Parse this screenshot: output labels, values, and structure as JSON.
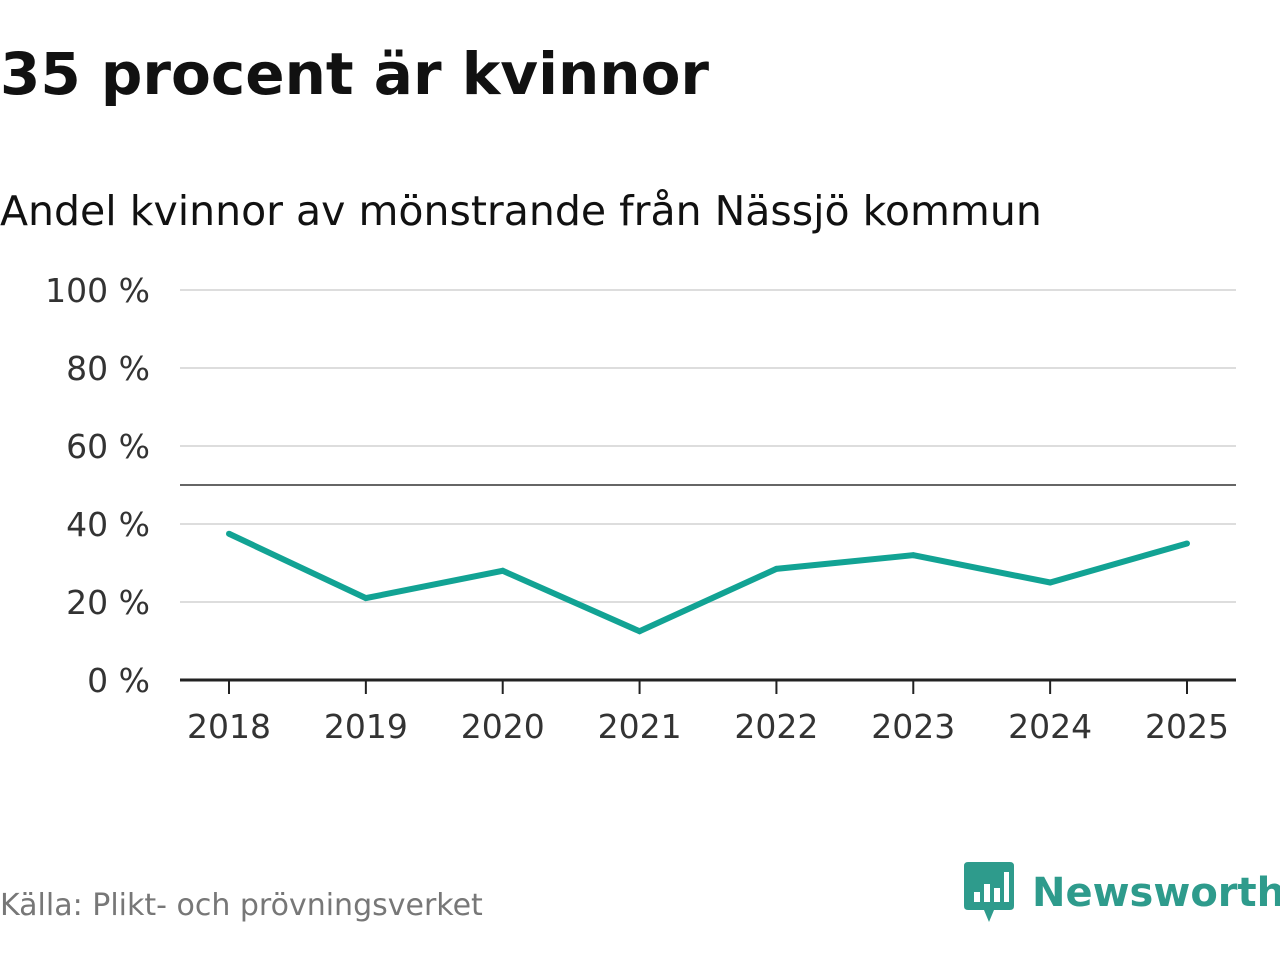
{
  "header": {
    "title": "35 procent är kvinnor",
    "subtitle": "Andel kvinnor av mönstrande från Nässjö kommun"
  },
  "footer": {
    "source": "Källa: Plikt- och prövningsverket",
    "brand": "Newsworthy",
    "brand_icon": "newsworthy-logo-icon"
  },
  "colors": {
    "line": "#12a394",
    "grid": "#dddddd",
    "reference_line": "#666666",
    "axis": "#222222",
    "brand": "#2e9b8c"
  },
  "chart_data": {
    "type": "line",
    "title": "Andel kvinnor av mönstrande från Nässjö kommun",
    "xlabel": "",
    "ylabel": "",
    "categories": [
      "2018",
      "2019",
      "2020",
      "2021",
      "2022",
      "2023",
      "2024",
      "2025"
    ],
    "series": [
      {
        "values": [
          37.5,
          21,
          28,
          12.5,
          28.5,
          32,
          25,
          35
        ]
      }
    ],
    "ylim": [
      0,
      100
    ],
    "yticks": [
      0,
      20,
      40,
      60,
      80,
      100
    ],
    "ytick_labels": [
      "0 %",
      "20 %",
      "40 %",
      "60 %",
      "80 %",
      "100 %"
    ],
    "reference_line": 50,
    "grid": true,
    "legend": "none"
  }
}
